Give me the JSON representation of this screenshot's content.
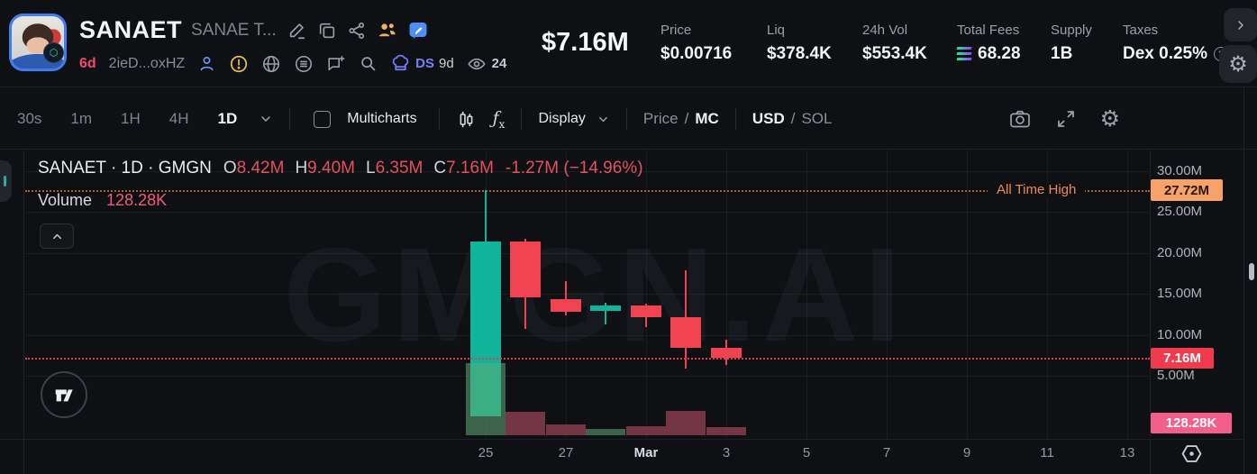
{
  "header": {
    "symbol": "SANAET",
    "name": "SANAE T...",
    "age": "6d",
    "address": "2ieD...oxHZ",
    "dev_tag": "DS",
    "dev_age": "9d",
    "watchers": "24",
    "market_cap": "$7.16M",
    "stats": [
      {
        "label": "Price",
        "value": "$0.00716"
      },
      {
        "label": "Liq",
        "value": "$378.4K"
      },
      {
        "label": "24h Vol",
        "value": "$553.4K"
      },
      {
        "label": "Total Fees",
        "value": "68.28",
        "icon": "solana"
      },
      {
        "label": "Supply",
        "value": "1B"
      },
      {
        "label": "Taxes",
        "value": "Dex 0.25%",
        "suffix_icon": "info"
      }
    ]
  },
  "toolbar": {
    "timeframes": [
      "30s",
      "1m",
      "1H",
      "4H",
      "1D"
    ],
    "active_timeframe": "1D",
    "multicharts": "Multicharts",
    "display": "Display",
    "price": "Price",
    "mc": "MC",
    "usd": "USD",
    "sol": "SOL",
    "slash": "/"
  },
  "chart": {
    "legend": {
      "title": "SANAET · 1D · GMGN",
      "ohlc": [
        {
          "label": "O",
          "value": "8.42M"
        },
        {
          "label": "H",
          "value": "9.40M"
        },
        {
          "label": "L",
          "value": "6.35M"
        },
        {
          "label": "C",
          "value": "7.16M"
        }
      ],
      "change": "-1.27M (−14.96%)",
      "volume_label": "Volume",
      "volume_value": "128.28K"
    },
    "ath_label": "All Time High",
    "watermark": "GMGN.AI",
    "badges": {
      "ath": "27.72M",
      "price": "7.16M",
      "volume": "128.28K"
    },
    "colors": {
      "up": "#10b498",
      "down": "#f04351",
      "ath_badge": "#f7a266",
      "price_badge": "#f23a4e",
      "volume_badge": "#f25f8a"
    }
  },
  "chart_data": {
    "type": "candlestick",
    "title": "SANAET · 1D · GMGN",
    "interval": "1D",
    "unit": "market cap, millions USD",
    "y_ticks": [
      "30.00M",
      "25.00M",
      "20.00M",
      "15.00M",
      "10.00M",
      "5.00M"
    ],
    "x_ticks": [
      "25",
      "27",
      "Mar",
      "3",
      "5",
      "7",
      "9",
      "11",
      "13"
    ],
    "x_highlight": "Mar",
    "ylim": [
      0,
      31
    ],
    "ath": 27.72,
    "last_price": 7.16,
    "last_volume_k": 128.28,
    "candles": [
      {
        "date": "Feb 25",
        "o": 0.06,
        "h": 27.72,
        "l": 0.05,
        "c": 21.4,
        "volume_k": 1080
      },
      {
        "date": "Feb 26",
        "o": 21.4,
        "h": 21.8,
        "l": 10.7,
        "c": 14.6,
        "volume_k": 350
      },
      {
        "date": "Feb 27",
        "o": 14.4,
        "h": 16.6,
        "l": 12.4,
        "c": 12.8,
        "volume_k": 165
      },
      {
        "date": "Feb 28",
        "o": 12.95,
        "h": 13.9,
        "l": 11.3,
        "c": 13.65,
        "volume_k": 95
      },
      {
        "date": "Mar 1",
        "o": 13.6,
        "h": 13.8,
        "l": 10.9,
        "c": 12.2,
        "volume_k": 135
      },
      {
        "date": "Mar 2",
        "o": 12.2,
        "h": 17.9,
        "l": 5.9,
        "c": 8.4,
        "volume_k": 370
      },
      {
        "date": "Mar 3",
        "o": 8.42,
        "h": 9.4,
        "l": 6.35,
        "c": 7.16,
        "volume_k": 128.28
      }
    ]
  }
}
